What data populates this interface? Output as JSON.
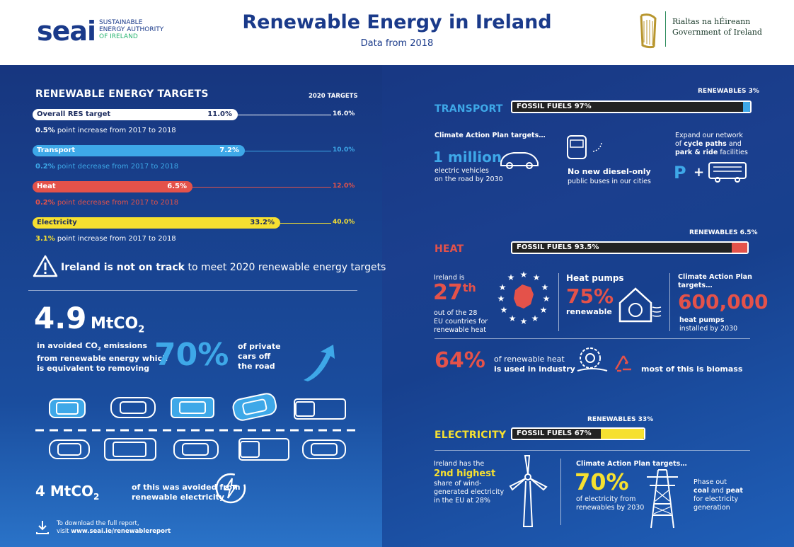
{
  "header": {
    "logo_main": "seai",
    "logo_line1": "SUSTAINABLE",
    "logo_line2": "ENERGY AUTHORITY",
    "logo_line3": "OF IRELAND",
    "title": "Renewable Energy in Ireland",
    "subtitle": "Data from 2018",
    "gov_line1": "Rialtas na hÉireann",
    "gov_line2": "Government of Ireland"
  },
  "targets": {
    "heading": "RENEWABLE ENERGY TARGETS",
    "col_label": "2020 TARGETS",
    "rows": [
      {
        "label": "Overall RES target",
        "value": "11.0%",
        "target": "16.0%",
        "note_pre": "0.5%",
        "note": " point increase from 2017 to 2018",
        "color": "#ffffff",
        "level": 11.0
      },
      {
        "label": "Transport",
        "value": "7.2%",
        "target": "10.0%",
        "note_pre": "0.2%",
        "note": " point decrease from 2017 to 2018",
        "color": "#3ea8e8",
        "level": 7.2
      },
      {
        "label": "Heat",
        "value": "6.5%",
        "target": "12.0%",
        "note_pre": "0.2%",
        "note": " point decrease from 2017 to 2018",
        "color": "#e4524a",
        "level": 6.5
      },
      {
        "label": "Electricity",
        "value": "33.2%",
        "target": "40.0%",
        "note_pre": "3.1%",
        "note": " point increase from 2017 to 2018",
        "color": "#f6e030",
        "level": 33.2
      }
    ],
    "warning_bold": "Ireland is not on track",
    "warning_rest": " to meet 2020 renewable energy targets"
  },
  "emissions": {
    "big": "4.9",
    "unit": "MtCO",
    "unit_sub": "2",
    "desc1": "in avoided CO",
    "desc1_sub": "2",
    "desc1_end": " emissions",
    "desc2": "from renewable energy which",
    "desc3": "is equivalent to removing",
    "pct": "70%",
    "side1": "of private",
    "side2": "cars off",
    "side3": "the road",
    "elec_big": "4 MtCO",
    "elec_sub": "2",
    "elec_desc1": "of this was avoided from",
    "elec_desc2": "renewable electricity",
    "download1": "To download the full report,",
    "download2_pre": "visit ",
    "download2": "www.seai.ie/renewablereport"
  },
  "transport": {
    "heading": "TRANSPORT",
    "renew_label": "RENEWABLES 3%",
    "fossil_label": "FOSSIL FUELS 97%",
    "renew_share": 3,
    "renew_color": "#3ea8e8",
    "cap_title": "Climate Action Plan targets…",
    "ev_big": "1 million",
    "ev_desc1": "electric vehicles",
    "ev_desc2": "on the road by 2030",
    "bus1": "No new diesel-only",
    "bus2": "public buses in our cities",
    "net1": "Expand our network",
    "net2_pre": "of ",
    "net2_b": "cycle paths",
    "net2_post": " and",
    "net3_b": "park & ride",
    "net3_post": " facilities",
    "p_icon": "P",
    "plus": "+"
  },
  "heat": {
    "heading": "HEAT",
    "renew_label": "RENEWABLES 6.5%",
    "fossil_label": "FOSSIL FUELS 93.5%",
    "renew_share": 6.5,
    "renew_color": "#e4524a",
    "rank_pre": "Ireland is",
    "rank": "27",
    "rank_sup": "th",
    "rank_desc1": "out of the 28",
    "rank_desc2": "EU countries for",
    "rank_desc3": "renewable heat",
    "hp_title": "Heat pumps",
    "hp_pct": "75%",
    "hp_desc": "renewable",
    "cap_title1": "Climate Action Plan",
    "cap_title2": "targets…",
    "cap_big": "600,000",
    "cap_desc1": "heat pumps",
    "cap_desc2": "installed by 2030",
    "ind_pct": "64%",
    "ind_desc1": "of renewable heat",
    "ind_desc2": "is used in industry",
    "bio": "most of this is biomass"
  },
  "electricity": {
    "heading": "ELECTRICITY",
    "renew_label": "RENEWABLES 33%",
    "fossil_label": "FOSSIL FUELS 67%",
    "renew_share": 33,
    "renew_color": "#f6e030",
    "wind1": "Ireland has the",
    "wind2": "2nd highest",
    "wind3": "share of wind-",
    "wind4": "generated electricity",
    "wind5": "in the EU at 28%",
    "cap_title": "Climate Action Plan targets…",
    "cap_pct": "70%",
    "cap_desc1": "of electricity from",
    "cap_desc2": "renewables by 2030",
    "phase1": "Phase out",
    "phase2_b1": "coal",
    "phase2_mid": " and ",
    "phase2_b2": "peat",
    "phase3": "for electricity",
    "phase4": "generation"
  }
}
